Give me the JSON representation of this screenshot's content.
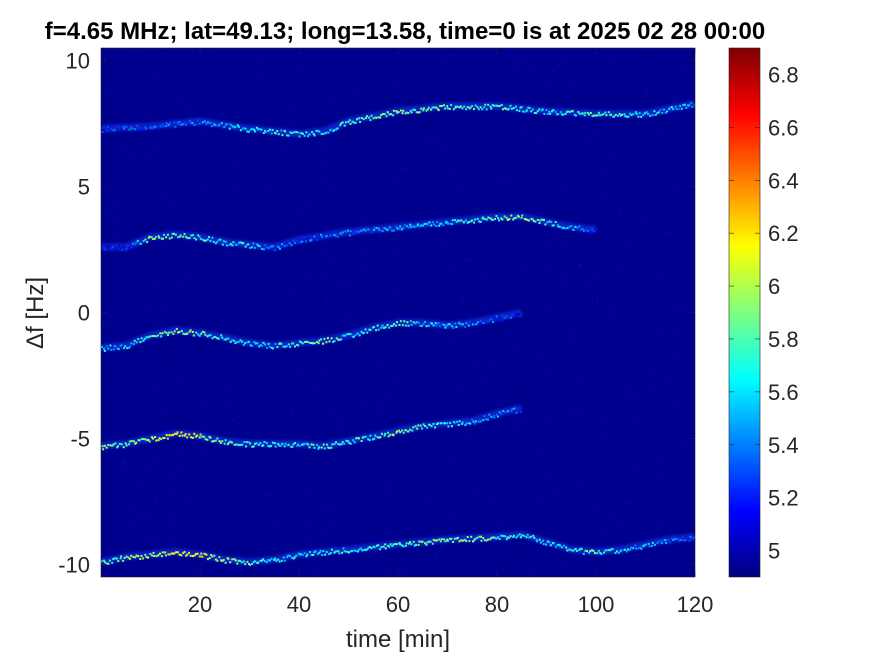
{
  "chart_data": {
    "type": "heatmap",
    "title": "f=4.65 MHz;  lat=49.13; long=13.58, time=0 is at 2025 02 28 00:00",
    "xlabel": "time [min]",
    "ylabel": "Δf [Hz]",
    "xlim": [
      0,
      120
    ],
    "ylim": [
      -10.5,
      10.5
    ],
    "x_ticks": [
      20,
      40,
      60,
      80,
      100,
      120
    ],
    "y_ticks": [
      10,
      5,
      0,
      -5,
      -10
    ],
    "grid": false,
    "colormap": "jet",
    "background_color": "#00008f",
    "colorbar": {
      "range": [
        4.9,
        6.9
      ],
      "ticks": [
        5,
        5.2,
        5.4,
        5.6,
        5.8,
        6,
        6.2,
        6.4,
        6.6,
        6.8
      ],
      "colors": [
        "#00007f",
        "#0000ff",
        "#007fff",
        "#00ffff",
        "#7fff7f",
        "#ffff00",
        "#ff7f00",
        "#ff0000",
        "#7f0000"
      ]
    },
    "traces": [
      {
        "name": "",
        "points": [
          [
            0,
            7.3
          ],
          [
            10,
            7.4
          ],
          [
            20,
            7.6
          ],
          [
            30,
            7.3
          ],
          [
            40,
            7.1
          ],
          [
            45,
            7.2
          ],
          [
            50,
            7.6
          ],
          [
            60,
            8.0
          ],
          [
            70,
            8.2
          ],
          [
            80,
            8.2
          ],
          [
            90,
            8.0
          ],
          [
            100,
            7.9
          ],
          [
            110,
            7.9
          ],
          [
            120,
            8.3
          ]
        ],
        "intensity": [
          5.2,
          5.3,
          5.4,
          5.6,
          5.7,
          5.6,
          5.8,
          5.9,
          5.8,
          5.7,
          5.6,
          5.8,
          5.6,
          5.5
        ]
      },
      {
        "name": "",
        "points": [
          [
            0,
            2.6
          ],
          [
            5,
            2.6
          ],
          [
            10,
            3.0
          ],
          [
            15,
            3.1
          ],
          [
            20,
            3.0
          ],
          [
            25,
            2.8
          ],
          [
            30,
            2.7
          ],
          [
            35,
            2.6
          ],
          [
            40,
            2.9
          ],
          [
            50,
            3.2
          ],
          [
            60,
            3.4
          ],
          [
            70,
            3.6
          ],
          [
            80,
            3.8
          ],
          [
            85,
            3.8
          ],
          [
            90,
            3.6
          ],
          [
            95,
            3.4
          ],
          [
            100,
            3.3
          ]
        ],
        "intensity": [
          5.1,
          5.2,
          5.9,
          5.8,
          5.7,
          5.6,
          5.6,
          5.4,
          5.3,
          5.4,
          5.5,
          5.6,
          5.8,
          5.9,
          5.7,
          5.5,
          5.3
        ]
      },
      {
        "name": "",
        "points": [
          [
            0,
            -1.4
          ],
          [
            5,
            -1.3
          ],
          [
            10,
            -0.9
          ],
          [
            15,
            -0.7
          ],
          [
            20,
            -0.8
          ],
          [
            25,
            -1.0
          ],
          [
            30,
            -1.2
          ],
          [
            35,
            -1.3
          ],
          [
            40,
            -1.2
          ],
          [
            45,
            -1.1
          ],
          [
            50,
            -0.9
          ],
          [
            55,
            -0.6
          ],
          [
            60,
            -0.4
          ],
          [
            65,
            -0.4
          ],
          [
            70,
            -0.5
          ],
          [
            75,
            -0.4
          ],
          [
            80,
            -0.2
          ],
          [
            85,
            0.0
          ]
        ],
        "intensity": [
          5.5,
          5.6,
          5.8,
          5.9,
          5.8,
          5.7,
          5.6,
          5.6,
          5.8,
          5.9,
          5.6,
          5.7,
          5.8,
          5.6,
          5.5,
          5.4,
          5.3,
          5.2
        ]
      },
      {
        "name": "",
        "points": [
          [
            0,
            -5.3
          ],
          [
            5,
            -5.2
          ],
          [
            10,
            -5.0
          ],
          [
            15,
            -4.8
          ],
          [
            20,
            -4.9
          ],
          [
            25,
            -5.1
          ],
          [
            30,
            -5.2
          ],
          [
            40,
            -5.2
          ],
          [
            45,
            -5.3
          ],
          [
            50,
            -5.1
          ],
          [
            55,
            -4.9
          ],
          [
            60,
            -4.7
          ],
          [
            65,
            -4.5
          ],
          [
            70,
            -4.4
          ],
          [
            75,
            -4.3
          ],
          [
            80,
            -4.0
          ],
          [
            85,
            -3.8
          ]
        ],
        "intensity": [
          5.9,
          5.9,
          6.0,
          6.1,
          6.0,
          5.8,
          5.7,
          5.6,
          5.8,
          5.7,
          5.8,
          5.9,
          5.7,
          5.6,
          5.5,
          5.4,
          5.3
        ]
      },
      {
        "name": "",
        "points": [
          [
            0,
            -9.9
          ],
          [
            5,
            -9.7
          ],
          [
            10,
            -9.6
          ],
          [
            15,
            -9.5
          ],
          [
            20,
            -9.6
          ],
          [
            25,
            -9.8
          ],
          [
            30,
            -9.9
          ],
          [
            35,
            -9.8
          ],
          [
            40,
            -9.6
          ],
          [
            50,
            -9.4
          ],
          [
            60,
            -9.2
          ],
          [
            70,
            -9.0
          ],
          [
            80,
            -8.9
          ],
          [
            85,
            -8.8
          ],
          [
            90,
            -9.1
          ],
          [
            95,
            -9.4
          ],
          [
            100,
            -9.5
          ],
          [
            105,
            -9.4
          ],
          [
            110,
            -9.2
          ],
          [
            115,
            -9.0
          ],
          [
            120,
            -8.9
          ]
        ],
        "intensity": [
          5.8,
          5.9,
          6.0,
          6.1,
          6.1,
          5.9,
          5.8,
          5.7,
          5.6,
          5.7,
          5.8,
          5.9,
          5.8,
          5.7,
          5.6,
          5.7,
          5.8,
          5.6,
          5.5,
          5.4,
          5.3
        ]
      }
    ]
  }
}
